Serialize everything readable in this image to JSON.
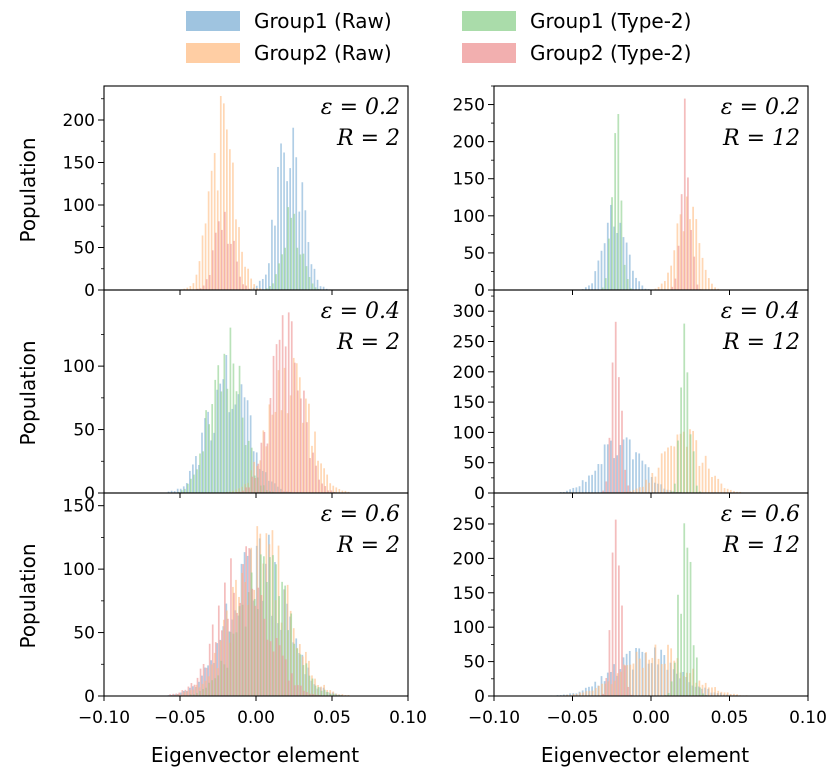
{
  "legend": {
    "items": [
      {
        "label": "Group1 (Raw)",
        "color": "#7fb0d6"
      },
      {
        "label": "Group1 (Type-2)",
        "color": "#8ed08e"
      },
      {
        "label": "Group2 (Raw)",
        "color": "#ffbe86"
      },
      {
        "label": "Group2 (Type-2)",
        "color": "#ee9494"
      }
    ]
  },
  "xlabel": "Eigenvector element",
  "ylabel": "Population",
  "x_ticks": [
    "−0.10",
    "−0.05",
    "0.00",
    "0.05",
    "0.10"
  ],
  "x_tick_values": [
    -0.1,
    -0.05,
    0.0,
    0.05,
    0.1
  ],
  "chart_data": [
    {
      "type": "bar",
      "title": "",
      "panel": "row1-left",
      "annotation": [
        "ε = 0.2",
        "R = 2"
      ],
      "xlim": [
        -0.1,
        0.1
      ],
      "ylim": [
        0,
        240
      ],
      "yticks": [
        0,
        50,
        100,
        150,
        200
      ],
      "yticklabels": [
        "0",
        "50",
        "100",
        "150",
        "200"
      ],
      "series": [
        {
          "name": "Group1 (Raw)",
          "center": 0.022,
          "std": 0.008,
          "peak": 215
        },
        {
          "name": "Group2 (Raw)",
          "center": -0.022,
          "std": 0.008,
          "peak": 230
        },
        {
          "name": "Group1 (Type-2)",
          "center": 0.024,
          "std": 0.006,
          "peak": 100
        },
        {
          "name": "Group2 (Type-2)",
          "center": -0.021,
          "std": 0.006,
          "peak": 95
        }
      ]
    },
    {
      "type": "bar",
      "title": "",
      "panel": "row1-right",
      "annotation": [
        "ε = 0.2",
        "R = 12"
      ],
      "xlim": [
        -0.1,
        0.1
      ],
      "ylim": [
        0,
        275
      ],
      "yticks": [
        0,
        50,
        100,
        150,
        200,
        250
      ],
      "yticklabels": [
        "0",
        "50",
        "100",
        "150",
        "200",
        "250"
      ],
      "series": [
        {
          "name": "Group1 (Raw)",
          "center": -0.023,
          "std": 0.007,
          "peak": 140
        },
        {
          "name": "Group2 (Raw)",
          "center": 0.023,
          "std": 0.007,
          "peak": 145
        },
        {
          "name": "Group1 (Type-2)",
          "center": -0.022,
          "std": 0.003,
          "peak": 250
        },
        {
          "name": "Group2 (Type-2)",
          "center": 0.022,
          "std": 0.003,
          "peak": 260
        }
      ]
    },
    {
      "type": "bar",
      "title": "",
      "panel": "row2-left",
      "annotation": [
        "ε = 0.4",
        "R = 2"
      ],
      "xlim": [
        -0.1,
        0.1
      ],
      "ylim": [
        0,
        160
      ],
      "yticks": [
        0,
        50,
        100
      ],
      "yticklabels": [
        "0",
        "50",
        "100"
      ],
      "series": [
        {
          "name": "Group1 (Raw)",
          "center": -0.018,
          "std": 0.013,
          "peak": 110
        },
        {
          "name": "Group2 (Raw)",
          "center": 0.022,
          "std": 0.013,
          "peak": 110
        },
        {
          "name": "Group1 (Type-2)",
          "center": -0.02,
          "std": 0.01,
          "peak": 145
        },
        {
          "name": "Group2 (Type-2)",
          "center": 0.02,
          "std": 0.01,
          "peak": 148
        }
      ]
    },
    {
      "type": "bar",
      "title": "",
      "panel": "row2-right",
      "annotation": [
        "ε = 0.4",
        "R = 12"
      ],
      "xlim": [
        -0.1,
        0.1
      ],
      "ylim": [
        0,
        335
      ],
      "yticks": [
        0,
        50,
        100,
        150,
        200,
        250,
        300
      ],
      "yticklabels": [
        "0",
        "50",
        "100",
        "150",
        "200",
        "250",
        "300"
      ],
      "series": [
        {
          "name": "Group1 (Raw)",
          "center": -0.02,
          "std": 0.013,
          "peak": 108
        },
        {
          "name": "Group2 (Raw)",
          "center": 0.02,
          "std": 0.013,
          "peak": 108
        },
        {
          "name": "Group1 (Type-2)",
          "center": 0.022,
          "std": 0.003,
          "peak": 290
        },
        {
          "name": "Group2 (Type-2)",
          "center": -0.022,
          "std": 0.003,
          "peak": 300
        }
      ]
    },
    {
      "type": "bar",
      "title": "",
      "panel": "row3-left",
      "annotation": [
        "ε = 0.6",
        "R = 2"
      ],
      "xlim": [
        -0.1,
        0.1
      ],
      "ylim": [
        0,
        160
      ],
      "yticks": [
        0,
        50,
        100,
        150
      ],
      "yticklabels": [
        "0",
        "50",
        "100",
        "150"
      ],
      "series": [
        {
          "name": "Group1 (Raw)",
          "center": 0.0,
          "std": 0.018,
          "peak": 130
        },
        {
          "name": "Group2 (Raw)",
          "center": 0.003,
          "std": 0.018,
          "peak": 135
        },
        {
          "name": "Group1 (Type-2)",
          "center": 0.005,
          "std": 0.016,
          "peak": 118
        },
        {
          "name": "Group2 (Type-2)",
          "center": -0.008,
          "std": 0.016,
          "peak": 120
        }
      ]
    },
    {
      "type": "bar",
      "title": "",
      "panel": "row3-right",
      "annotation": [
        "ε = 0.6",
        "R = 12"
      ],
      "xlim": [
        -0.1,
        0.1
      ],
      "ylim": [
        0,
        295
      ],
      "yticks": [
        0,
        50,
        100,
        150,
        200,
        250
      ],
      "yticklabels": [
        "0",
        "50",
        "100",
        "150",
        "200",
        "250"
      ],
      "series": [
        {
          "name": "Group1 (Raw)",
          "center": -0.003,
          "std": 0.02,
          "peak": 75
        },
        {
          "name": "Group2 (Raw)",
          "center": 0.002,
          "std": 0.02,
          "peak": 78
        },
        {
          "name": "Group1 (Type-2)",
          "center": 0.022,
          "std": 0.004,
          "peak": 278
        },
        {
          "name": "Group2 (Type-2)",
          "center": -0.022,
          "std": 0.003,
          "peak": 290
        }
      ]
    }
  ]
}
